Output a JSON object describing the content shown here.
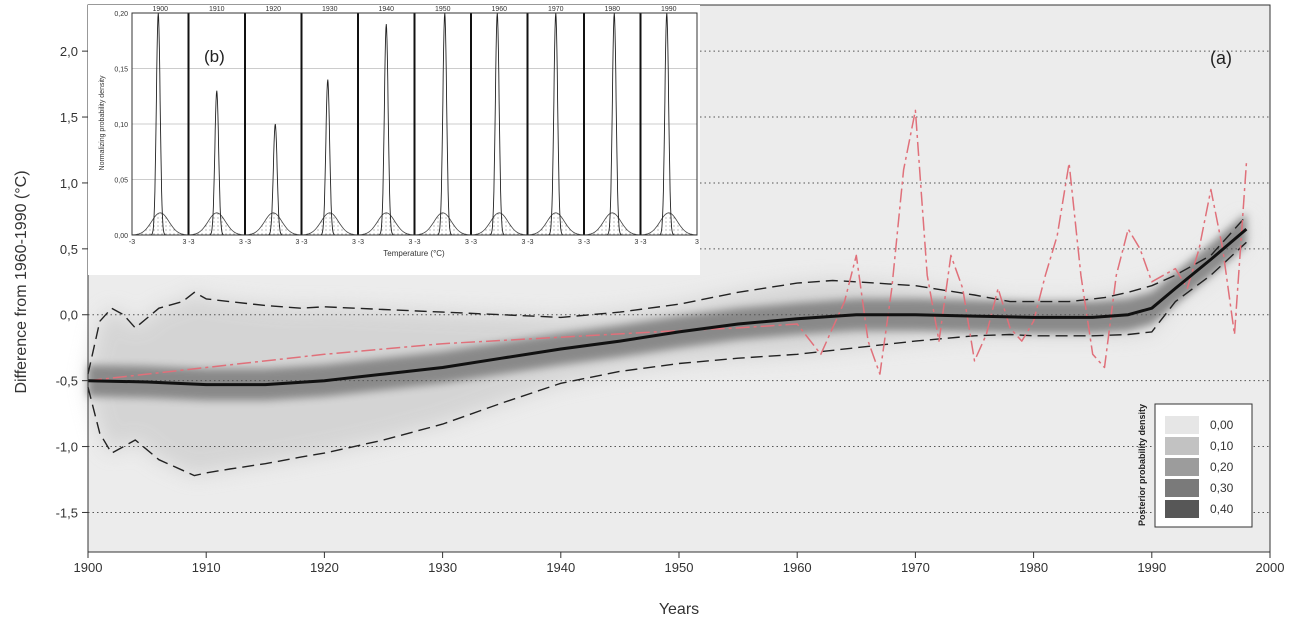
{
  "chart_data": [
    {
      "type": "line",
      "panel_label": "(a)",
      "xlabel": "Years",
      "ylabel": "Difference from 1960-1990 (°C)",
      "xlim": [
        1900,
        2000
      ],
      "ylim": [
        -1.8,
        2.35
      ],
      "x_ticks": [
        "1900",
        "1910",
        "1920",
        "1930",
        "1940",
        "1950",
        "1960",
        "1970",
        "1980",
        "1990",
        "2000"
      ],
      "y_ticks": [
        "2,0",
        "1,5",
        "1,0",
        "0,5",
        "0,0",
        "-0,5",
        "-1,0",
        "-1,5"
      ],
      "y_tick_values": [
        2.0,
        1.5,
        1.0,
        0.5,
        0.0,
        -0.5,
        -1.0,
        -1.5
      ],
      "grid": "horizontal dotted",
      "background_density": "grayscale posterior probability density",
      "series": [
        {
          "style": "solid black (posterior median)",
          "x": [
            1900,
            1905,
            1910,
            1915,
            1920,
            1925,
            1930,
            1935,
            1940,
            1945,
            1950,
            1955,
            1960,
            1965,
            1970,
            1975,
            1980,
            1985,
            1988,
            1990,
            1992,
            1995,
            1998
          ],
          "y": [
            -0.5,
            -0.51,
            -0.53,
            -0.53,
            -0.5,
            -0.45,
            -0.4,
            -0.33,
            -0.26,
            -0.2,
            -0.13,
            -0.07,
            -0.03,
            0.0,
            0.0,
            -0.01,
            -0.02,
            -0.02,
            0.0,
            0.05,
            0.2,
            0.42,
            0.65
          ]
        },
        {
          "style": "dashed black (upper bound)",
          "x": [
            1900,
            1901,
            1902,
            1903,
            1904,
            1906,
            1908,
            1909,
            1910,
            1912,
            1915,
            1918,
            1920,
            1925,
            1930,
            1935,
            1940,
            1945,
            1950,
            1955,
            1960,
            1963,
            1965,
            1970,
            1975,
            1978,
            1980,
            1983,
            1986,
            1988,
            1990,
            1992,
            1995,
            1998
          ],
          "y": [
            -0.45,
            -0.05,
            0.05,
            0.0,
            -0.1,
            0.05,
            0.1,
            0.17,
            0.12,
            0.1,
            0.07,
            0.05,
            0.06,
            0.04,
            0.02,
            0.0,
            -0.02,
            0.02,
            0.08,
            0.17,
            0.24,
            0.26,
            0.25,
            0.22,
            0.15,
            0.1,
            0.1,
            0.1,
            0.13,
            0.17,
            0.22,
            0.3,
            0.45,
            0.75
          ]
        },
        {
          "style": "dashed black (lower bound)",
          "x": [
            1900,
            1901,
            1902,
            1903,
            1904,
            1906,
            1908,
            1909,
            1910,
            1912,
            1915,
            1918,
            1920,
            1925,
            1930,
            1935,
            1940,
            1945,
            1950,
            1955,
            1960,
            1965,
            1970,
            1975,
            1978,
            1980,
            1985,
            1988,
            1990,
            1992,
            1995,
            1998
          ],
          "y": [
            -0.55,
            -0.9,
            -1.05,
            -1.0,
            -0.95,
            -1.1,
            -1.18,
            -1.22,
            -1.2,
            -1.17,
            -1.13,
            -1.08,
            -1.05,
            -0.95,
            -0.83,
            -0.67,
            -0.52,
            -0.43,
            -0.37,
            -0.33,
            -0.3,
            -0.25,
            -0.2,
            -0.16,
            -0.15,
            -0.16,
            -0.16,
            -0.15,
            -0.13,
            0.1,
            0.3,
            0.55
          ]
        },
        {
          "style": "dash-dot red (instrumental record)",
          "x": [
            1900,
            1910,
            1920,
            1930,
            1940,
            1950,
            1955,
            1960,
            1962,
            1964,
            1965,
            1966,
            1967,
            1968,
            1969,
            1970,
            1971,
            1972,
            1973,
            1974,
            1975,
            1976,
            1977,
            1978,
            1979,
            1980,
            1981,
            1982,
            1983,
            1984,
            1985,
            1986,
            1987,
            1988,
            1989,
            1990,
            1991,
            1992,
            1993,
            1994,
            1995,
            1996,
            1997,
            1998
          ],
          "y": [
            -0.5,
            -0.4,
            -0.3,
            -0.22,
            -0.17,
            -0.12,
            -0.1,
            -0.07,
            -0.3,
            0.1,
            0.45,
            -0.2,
            -0.45,
            0.2,
            1.1,
            1.55,
            0.3,
            -0.2,
            0.45,
            0.2,
            -0.35,
            -0.15,
            0.2,
            -0.1,
            -0.2,
            -0.05,
            0.3,
            0.6,
            1.15,
            0.3,
            -0.3,
            -0.4,
            0.3,
            0.65,
            0.5,
            0.25,
            0.3,
            0.35,
            0.2,
            0.5,
            0.95,
            0.5,
            -0.15,
            1.15
          ]
        }
      ],
      "legend": {
        "title": "Posterior probability density",
        "position": "bottom-right",
        "entries": [
          {
            "label": "0,00",
            "color": "#e6e6e6"
          },
          {
            "label": "0,10",
            "color": "#c2c2c2"
          },
          {
            "label": "0,20",
            "color": "#9c9c9c"
          },
          {
            "label": "0,30",
            "color": "#7a7a7a"
          },
          {
            "label": "0,40",
            "color": "#575757"
          }
        ]
      }
    },
    {
      "type": "line",
      "panel_label": "(b)",
      "position": "top-left inset",
      "xlabel": "Temperature (°C)",
      "ylabel": "Normalizing probability density",
      "ylim": [
        0,
        0.2
      ],
      "y_ticks": [
        "0,00",
        "0,05",
        "0,10",
        "0,15",
        "0,20"
      ],
      "y_tick_values": [
        0.0,
        0.05,
        0.1,
        0.15,
        0.2
      ],
      "x_tick_labels": [
        "-3",
        "3 -3",
        "3 -3",
        "3 -3",
        "3 -3",
        "3 -3",
        "3 -3",
        "3 -3",
        "3 -3",
        "3 -3",
        "3"
      ],
      "panels": [
        "1900",
        "1910",
        "1920",
        "1930",
        "1940",
        "1950",
        "1960",
        "1970",
        "1980",
        "1990"
      ],
      "panel_peaks": [
        0.2,
        0.13,
        0.1,
        0.14,
        0.19,
        0.2,
        0.2,
        0.2,
        0.2,
        0.2
      ],
      "prior_peak": 0.02
    }
  ]
}
